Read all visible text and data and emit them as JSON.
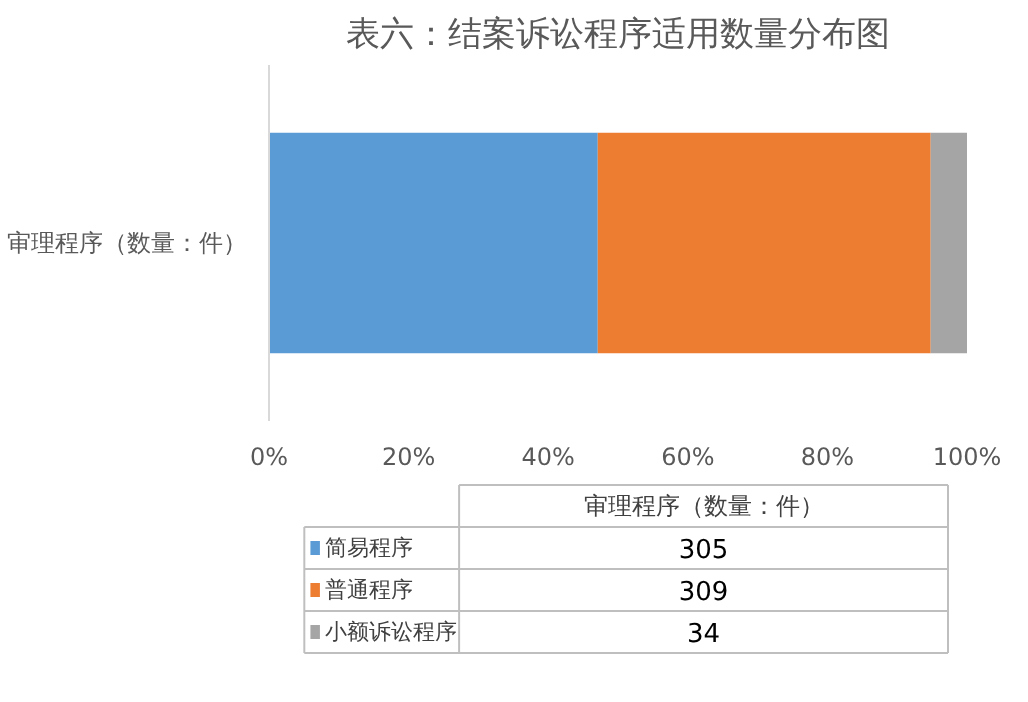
{
  "chart_data": {
    "type": "bar",
    "orientation": "horizontal",
    "stacked": true,
    "title": "表六：结案诉讼程序适用数量分布图",
    "categories": [
      "审理程序（数量：件）"
    ],
    "series": [
      {
        "name": "简易程序",
        "color": "#5b9bd5",
        "values": [
          47.1
        ]
      },
      {
        "name": "普通程序",
        "color": "#ed7d31",
        "values": [
          47.7
        ]
      },
      {
        "name": "小额诉讼程序",
        "color": "#a5a5a5",
        "values": [
          5.2
        ]
      }
    ],
    "annotations": [
      "305",
      "309",
      "34"
    ],
    "xlim": [
      0,
      100
    ],
    "xticks": [
      {
        "value": 0,
        "label": "0%"
      },
      {
        "value": 20,
        "label": "20%"
      },
      {
        "value": 40,
        "label": "40%"
      },
      {
        "value": 60,
        "label": "60%"
      },
      {
        "value": 80,
        "label": "80%"
      },
      {
        "value": 100,
        "label": "100%"
      }
    ],
    "legend": "bottom"
  }
}
